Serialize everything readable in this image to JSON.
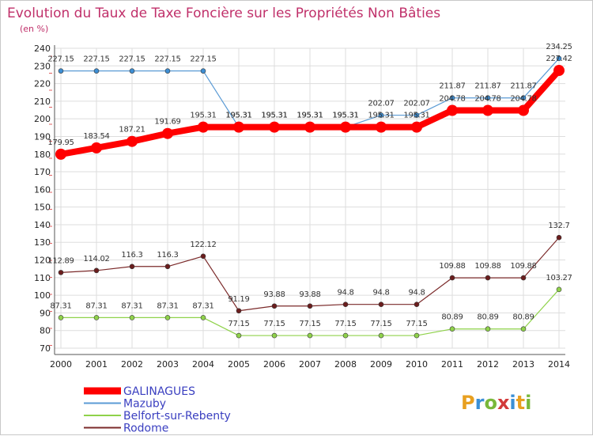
{
  "chart_data": {
    "type": "line",
    "title": "Evolution du Taux de Taxe Foncière sur les Propriétés Non Bâties",
    "ylabel": "(en %)",
    "xlabel": "",
    "ylim": [
      70,
      240
    ],
    "yticks": [
      70,
      80,
      90,
      100,
      110,
      120,
      130,
      140,
      150,
      160,
      170,
      180,
      190,
      200,
      210,
      220,
      230,
      240
    ],
    "categories": [
      "2000",
      "2001",
      "2002",
      "2003",
      "2004",
      "2005",
      "2006",
      "2007",
      "2008",
      "2009",
      "2010",
      "2011",
      "2012",
      "2013",
      "2014"
    ],
    "grid": true,
    "legend_position": "bottom-left",
    "series": [
      {
        "name": "Mazuby",
        "color": "#5b9bd5",
        "marker": "#3d8ed4",
        "values": [
          227.15,
          227.15,
          227.15,
          227.15,
          227.15,
          195.31,
          195.31,
          195.31,
          195.31,
          202.07,
          202.07,
          211.87,
          211.87,
          211.87,
          234.25
        ],
        "labels": [
          "227.15",
          "227.15",
          "227.15",
          "227.15",
          "227.15",
          "195.31",
          "195.31",
          "195.31",
          "195.31",
          "202.07",
          "202.07",
          "211.87",
          "211.87",
          "211.87",
          "234.25"
        ]
      },
      {
        "name": "Belfort-sur-Rebenty",
        "color": "#8fd24a",
        "marker": "#8fd24a",
        "values": [
          87.31,
          87.31,
          87.31,
          87.31,
          87.31,
          77.15,
          77.15,
          77.15,
          77.15,
          77.15,
          77.15,
          80.89,
          80.89,
          80.89,
          103.27
        ],
        "labels": [
          "87.31",
          "87.31",
          "87.31",
          "87.31",
          "87.31",
          "77.15",
          "77.15",
          "77.15",
          "77.15",
          "77.15",
          "77.15",
          "80.89",
          "80.89",
          "80.89",
          "103.27"
        ]
      },
      {
        "name": "Rodome",
        "color": "#7b2a2a",
        "marker": "#6b1d1d",
        "values": [
          112.89,
          114.02,
          116.3,
          116.3,
          122.12,
          91.19,
          93.88,
          93.88,
          94.8,
          94.8,
          94.8,
          109.88,
          109.88,
          109.88,
          132.7
        ],
        "labels": [
          "112.89",
          "114.02",
          "116.3",
          "116.3",
          "122.12",
          "91.19",
          "93.88",
          "93.88",
          "94.8",
          "94.8",
          "94.8",
          "109.88",
          "109.88",
          "109.88",
          "132.7"
        ]
      },
      {
        "name": "GALINAGUES",
        "color": "#ff0000",
        "marker": "#ff0000",
        "values": [
          179.95,
          183.54,
          187.21,
          191.69,
          195.31,
          195.31,
          195.31,
          195.31,
          195.31,
          195.31,
          195.31,
          204.78,
          204.78,
          204.78,
          227.42
        ],
        "labels": [
          "179.95",
          "183.54",
          "187.21",
          "191.69",
          "195.31",
          "195.31",
          "195.31",
          "195.31",
          "195.31",
          "195.31",
          "195.31",
          "204.78",
          "204.78",
          "204.78",
          "227.42"
        ]
      }
    ],
    "legend_order": [
      "GALINAGUES",
      "Mazuby",
      "Belfort-sur-Rebenty",
      "Rodome"
    ]
  },
  "branding": {
    "logo_text": "Proxiti",
    "logo_colors": [
      "#e8a020",
      "#3a8fd6",
      "#79b83a",
      "#d23a3a",
      "#3a8fd6",
      "#e8a020",
      "#79b83a"
    ]
  },
  "colors": {
    "grid": "#dddddd",
    "axis": "#555555",
    "title": "#c0306a",
    "legend_text": "#3a3fc0"
  }
}
